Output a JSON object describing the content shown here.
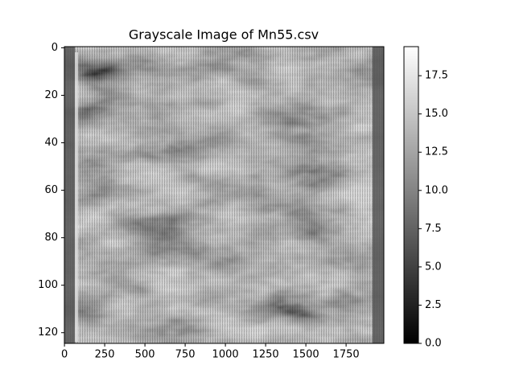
{
  "chart_data": {
    "type": "image",
    "title": "Grayscale Image of Mn55.csv",
    "colormap": "gray",
    "xlim": [
      -0.5,
      1984.5
    ],
    "xticks": [
      0,
      250,
      500,
      750,
      1000,
      1250,
      1500,
      1750
    ],
    "ylim": [
      124.5,
      -0.5
    ],
    "yticks": [
      0,
      20,
      40,
      60,
      80,
      100,
      120
    ],
    "clim": [
      0,
      19.4
    ],
    "cticks": [
      {
        "value": 0,
        "label": "0.0"
      },
      2.5,
      {
        "value": 5,
        "label": "5.0"
      },
      7.5,
      {
        "value": 10,
        "label": "10.0"
      },
      12.5,
      {
        "value": 15,
        "label": "15.0"
      },
      17.5
    ]
  }
}
